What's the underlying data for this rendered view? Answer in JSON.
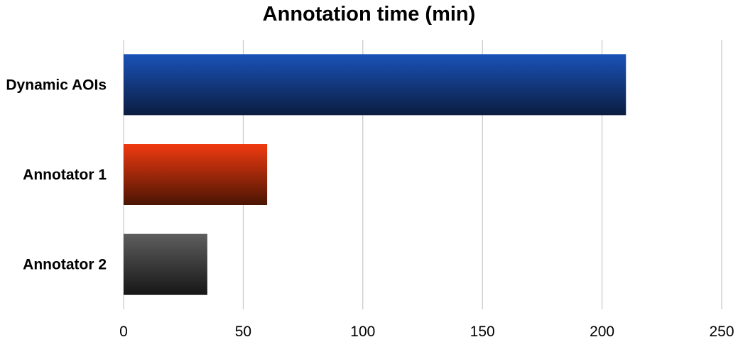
{
  "chart_data": {
    "type": "bar",
    "orientation": "horizontal",
    "title": "Annotation time (min)",
    "xlabel": "",
    "ylabel": "",
    "categories": [
      "Dynamic AOIs",
      "Annotator 1",
      "Annotator 2"
    ],
    "values": [
      210,
      60,
      35
    ],
    "xlim": [
      0,
      250
    ],
    "xticks": [
      "0",
      "50",
      "100",
      "150",
      "200",
      "250"
    ],
    "grid": true,
    "legend": "none",
    "colors": [
      {
        "top": "#1a52b8",
        "bottom": "#0b1d40"
      },
      {
        "top": "#f03a10",
        "bottom": "#4a1503"
      },
      {
        "top": "#5e5e5e",
        "bottom": "#161616"
      }
    ],
    "gridline_color": "#bdbdbd"
  }
}
